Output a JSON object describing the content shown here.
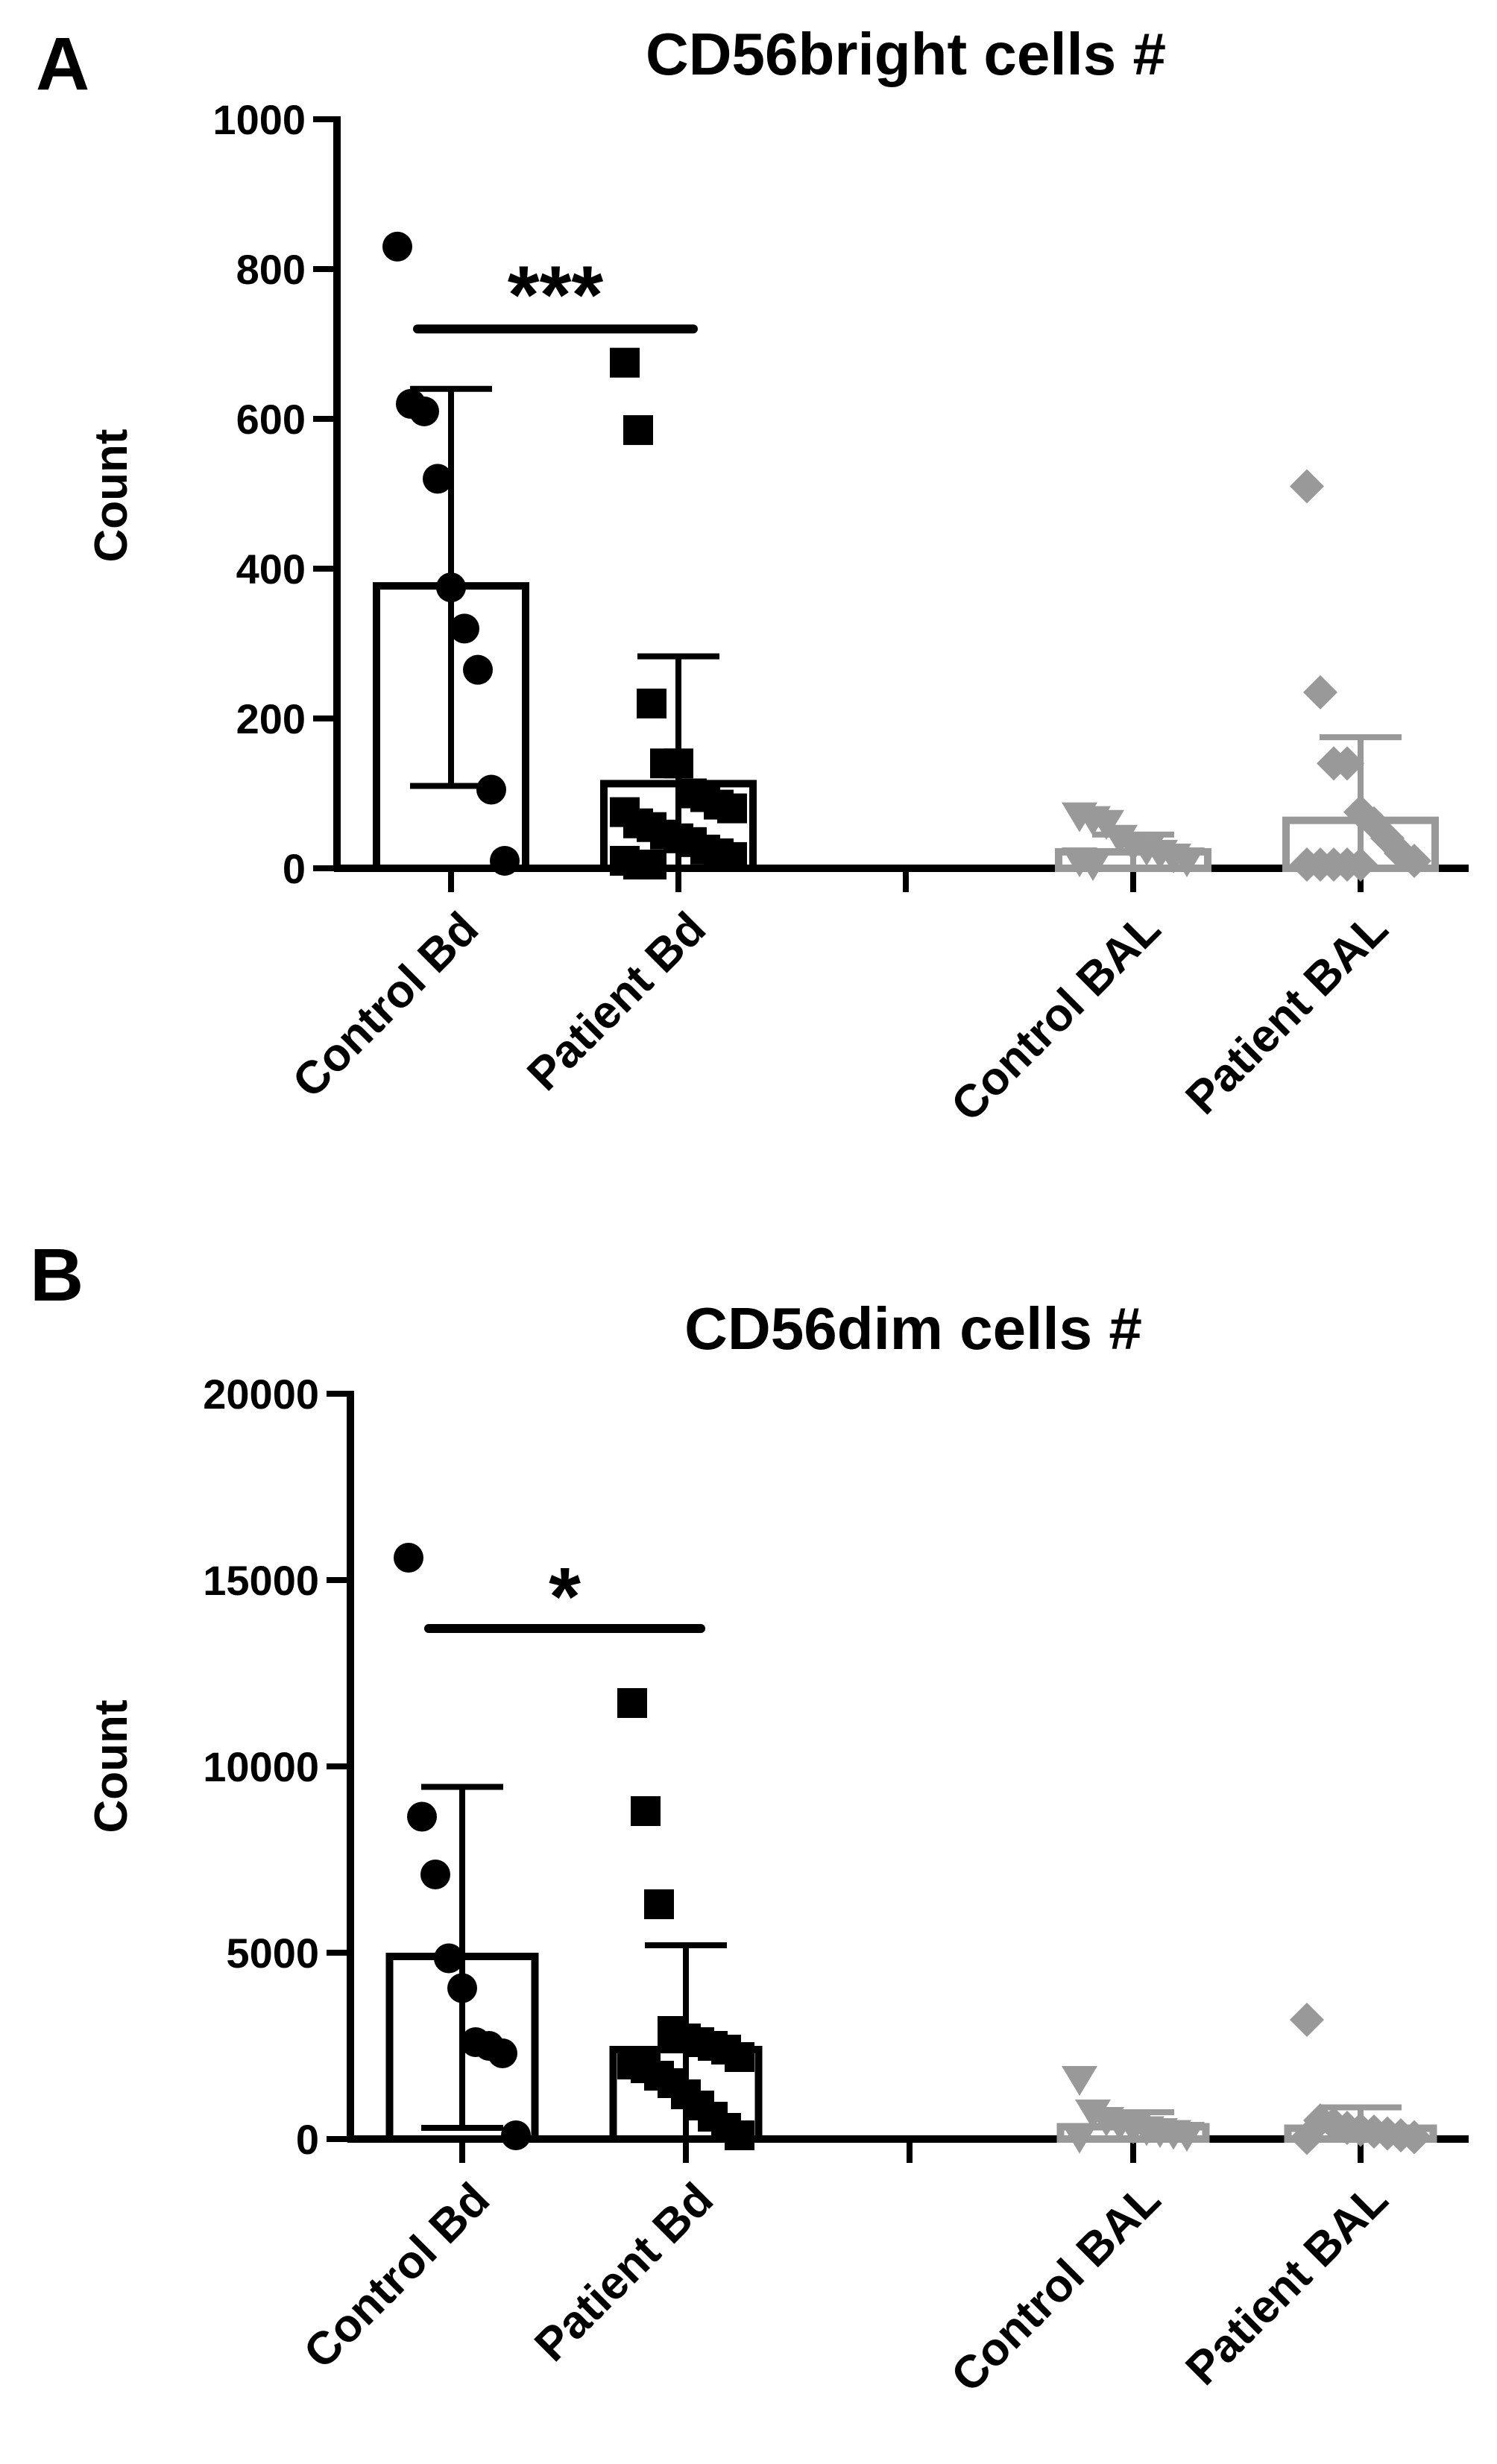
{
  "panels": [
    {
      "letter": "A",
      "title": "CD56bright cells #",
      "ylabel": "Count",
      "significance": "***"
    },
    {
      "letter": "B",
      "title": "CD56dim cells #",
      "ylabel": "Count",
      "significance": "*"
    }
  ],
  "chart_data": [
    {
      "type": "bar",
      "title": "CD56bright cells #",
      "ylabel": "Count",
      "xlabel": "",
      "ylim": [
        0,
        1000
      ],
      "yticks": [
        0,
        200,
        400,
        600,
        800,
        1000
      ],
      "grid": false,
      "categories": [
        "Control Bd",
        "Patient Bd",
        "Control BAL",
        "Patient BAL"
      ],
      "category_slots": [
        0,
        1,
        3,
        4
      ],
      "values": [
        377,
        113,
        22,
        64
      ],
      "error_upper": [
        640,
        283,
        45,
        175
      ],
      "error_lower": [
        110,
        0,
        0,
        0
      ],
      "colors": [
        "#000000",
        "#000000",
        "#999999",
        "#999999"
      ],
      "markers": [
        "circle",
        "square",
        "triangle-down",
        "diamond"
      ],
      "points": [
        [
          830,
          620,
          610,
          520,
          375,
          320,
          265,
          105,
          10
        ],
        [
          675,
          585,
          220,
          140,
          140,
          100,
          95,
          85,
          80,
          75,
          60,
          55,
          45,
          40,
          35,
          25,
          20,
          15,
          10,
          5,
          5
        ],
        [
          70,
          65,
          60,
          40,
          30,
          25,
          20,
          15,
          10,
          10,
          5
        ],
        [
          510,
          235,
          140,
          140,
          75,
          60,
          40,
          20,
          10,
          5,
          5,
          5,
          5,
          5
        ]
      ],
      "significance": {
        "between": [
          0,
          1
        ],
        "label": "***",
        "y": 720
      }
    },
    {
      "type": "bar",
      "title": "CD56dim cells #",
      "ylabel": "Count",
      "xlabel": "",
      "ylim": [
        0,
        20000
      ],
      "yticks": [
        0,
        5000,
        10000,
        15000,
        20000
      ],
      "grid": false,
      "categories": [
        "Control Bd",
        "Patient Bd",
        "Control BAL",
        "Patient BAL"
      ],
      "category_slots": [
        0,
        1,
        3,
        4
      ],
      "values": [
        4900,
        2400,
        330,
        290
      ],
      "error_upper": [
        9450,
        5200,
        720,
        850
      ],
      "error_lower": [
        300,
        0,
        0,
        0
      ],
      "colors": [
        "#000000",
        "#000000",
        "#999999",
        "#999999"
      ],
      "markers": [
        "circle",
        "square",
        "triangle-down",
        "diamond"
      ],
      "points": [
        [
          15600,
          8650,
          7100,
          4850,
          4050,
          2600,
          2500,
          2300,
          100
        ],
        [
          11700,
          8800,
          6300,
          2900,
          2700,
          2600,
          2500,
          2400,
          2200,
          2000,
          1900,
          1700,
          1500,
          1200,
          900,
          600,
          300,
          100
        ],
        [
          1600,
          700,
          500,
          400,
          300,
          250,
          200,
          150,
          100,
          50
        ],
        [
          3200,
          500,
          400,
          300,
          250,
          200,
          150,
          100,
          50,
          30
        ]
      ],
      "significance": {
        "between": [
          0,
          1
        ],
        "label": "*",
        "y": 13700
      }
    }
  ]
}
